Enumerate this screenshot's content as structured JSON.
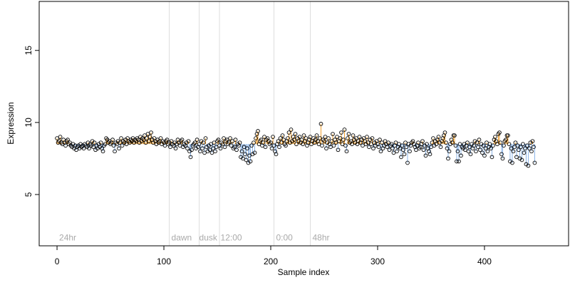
{
  "chart_data": {
    "type": "scatter",
    "xlabel": "Sample index",
    "ylabel": "Expression",
    "xlim": [
      -16.7,
      478.7
    ],
    "ylim": [
      1.44,
      18.4
    ],
    "xticks": [
      0,
      100,
      200,
      300,
      400
    ],
    "yticks": [
      5,
      10,
      15
    ],
    "baseline": 8.5,
    "above_color": "#f0a030",
    "below_color": "#8ab4e8",
    "point_color": "#000000",
    "vlines": [
      105,
      133,
      152,
      203,
      237
    ],
    "annotations": [
      {
        "x": 2,
        "y": 2,
        "label": "24hr"
      },
      {
        "x": 107,
        "y": 2,
        "label": "dawn"
      },
      {
        "x": 133,
        "y": 2,
        "label": "dusk"
      },
      {
        "x": 153,
        "y": 2,
        "label": "12:00"
      },
      {
        "x": 205,
        "y": 2,
        "label": "0:00"
      },
      {
        "x": 239,
        "y": 2,
        "label": "48hr"
      }
    ],
    "values": [
      8.9,
      8.6,
      8.7,
      9.0,
      8.6,
      8.5,
      8.8,
      8.6,
      8.4,
      8.7,
      8.8,
      8.5,
      8.6,
      8.4,
      8.3,
      8.5,
      8.2,
      8.4,
      8.1,
      8.3,
      8.4,
      8.2,
      8.5,
      8.3,
      8.4,
      8.2,
      8.5,
      8.4,
      8.3,
      8.6,
      8.2,
      8.5,
      8.4,
      8.7,
      8.3,
      8.6,
      8.1,
      8.4,
      8.2,
      8.5,
      8.3,
      8.6,
      8.2,
      8.0,
      8.4,
      8.5,
      8.9,
      8.8,
      8.6,
      8.7,
      8.5,
      8.6,
      8.8,
      8.4,
      8.0,
      8.6,
      8.5,
      8.7,
      8.2,
      8.6,
      8.9,
      8.4,
      8.7,
      8.6,
      8.8,
      8.5,
      8.9,
      8.7,
      8.6,
      8.8,
      8.7,
      8.9,
      8.6,
      8.8,
      8.7,
      8.9,
      8.8,
      8.6,
      9.0,
      8.7,
      8.9,
      8.8,
      9.1,
      8.6,
      8.9,
      9.2,
      8.7,
      9.0,
      9.3,
      8.8,
      8.6,
      8.9,
      8.7,
      8.5,
      8.8,
      8.6,
      8.7,
      8.9,
      8.5,
      8.7,
      8.6,
      8.4,
      8.7,
      8.8,
      8.5,
      8.6,
      8.3,
      8.7,
      8.5,
      8.4,
      8.6,
      8.2,
      8.5,
      8.8,
      8.6,
      8.4,
      8.7,
      8.8,
      8.3,
      8.5,
      8.4,
      8.6,
      8.2,
      8.7,
      8.0,
      7.6,
      8.1,
      8.4,
      8.5,
      8.6,
      8.2,
      8.8,
      8.3,
      8.5,
      8.0,
      8.7,
      8.2,
      8.6,
      7.9,
      8.9,
      8.3,
      8.0,
      8.4,
      8.1,
      8.5,
      7.9,
      8.2,
      8.6,
      8.0,
      8.3,
      8.7,
      8.8,
      8.4,
      8.2,
      8.6,
      8.5,
      8.9,
      8.3,
      8.7,
      8.8,
      8.5,
      8.6,
      8.9,
      8.4,
      8.7,
      8.2,
      8.3,
      8.8,
      8.1,
      8.5,
      8.4,
      8.6,
      7.6,
      8.0,
      7.5,
      8.3,
      7.8,
      7.4,
      8.2,
      7.2,
      7.7,
      7.3,
      8.4,
      7.8,
      8.6,
      7.9,
      8.9,
      9.2,
      9.4,
      8.5,
      8.7,
      8.8,
      8.4,
      8.6,
      9.0,
      8.3,
      8.8,
      8.9,
      8.7,
      8.5,
      8.6,
      8.2,
      9.0,
      8.4,
      8.0,
      7.8,
      8.5,
      8.7,
      8.3,
      8.9,
      8.6,
      9.1,
      8.8,
      8.5,
      8.4,
      8.7,
      8.9,
      9.3,
      8.6,
      9.5,
      8.7,
      9.0,
      8.8,
      9.2,
      8.5,
      8.9,
      8.7,
      9.0,
      8.6,
      8.8,
      8.5,
      9.1,
      8.7,
      8.9,
      8.4,
      8.6,
      8.8,
      9.0,
      8.5,
      8.7,
      8.9,
      8.6,
      8.8,
      9.1,
      8.7,
      8.5,
      8.9,
      9.9,
      8.4,
      8.8,
      8.7,
      9.0,
      8.2,
      8.6,
      8.9,
      8.5,
      8.3,
      8.7,
      9.2,
      8.4,
      8.8,
      8.6,
      9.0,
      8.1,
      8.7,
      8.9,
      9.3,
      8.5,
      8.8,
      9.5,
      8.4,
      8.0,
      8.9,
      9.2,
      8.6,
      8.7,
      8.5,
      9.1,
      8.8,
      8.6,
      8.9,
      8.5,
      8.7,
      9.0,
      8.6,
      8.8,
      8.4,
      8.9,
      8.7,
      8.5,
      9.0,
      8.6,
      8.3,
      8.8,
      8.5,
      8.9,
      8.2,
      8.6,
      8.4,
      8.7,
      8.5,
      8.3,
      8.8,
      8.0,
      8.6,
      8.2,
      8.4,
      8.7,
      8.5,
      8.3,
      8.6,
      8.1,
      8.4,
      8.5,
      8.2,
      7.9,
      8.4,
      8.6,
      8.0,
      8.3,
      8.5,
      8.2,
      7.6,
      8.4,
      8.1,
      7.8,
      8.6,
      8.3,
      7.2,
      8.5,
      8.0,
      8.4,
      8.6,
      8.7,
      8.5,
      8.3,
      8.1,
      8.4,
      8.6,
      8.2,
      8.3,
      8.5,
      8.7,
      8.1,
      8.4,
      7.7,
      8.5,
      8.2,
      8.0,
      7.8,
      8.3,
      8.6,
      8.9,
      8.4,
      8.7,
      8.5,
      8.8,
      9.0,
      8.6,
      8.3,
      8.7,
      8.9,
      9.1,
      9.3,
      8.6,
      8.2,
      7.5,
      8.0,
      8.5,
      8.8,
      8.6,
      9.1,
      9.1,
      8.4,
      7.3,
      8.0,
      7.3,
      8.5,
      7.7,
      8.3,
      8.2,
      8.5,
      8.1,
      8.4,
      8.6,
      8.0,
      8.3,
      7.8,
      8.5,
      8.2,
      8.4,
      8.7,
      8.0,
      8.6,
      8.3,
      8.8,
      8.1,
      8.5,
      7.9,
      8.4,
      7.7,
      8.2,
      8.6,
      8.0,
      8.3,
      8.5,
      8.2,
      7.6,
      8.4,
      8.8,
      9.0,
      8.7,
      8.5,
      9.2,
      9.3,
      8.6,
      7.8,
      7.5,
      8.4,
      8.7,
      8.8,
      9.1,
      9.1,
      8.5,
      7.3,
      8.2,
      7.2,
      8.0,
      8.3,
      8.6,
      7.6,
      8.4,
      8.1,
      7.5,
      8.3,
      7.4,
      8.5,
      7.9,
      8.2,
      7.1,
      8.4,
      7.0,
      8.2,
      8.6,
      8.0,
      8.7,
      8.3,
      7.2
    ]
  }
}
